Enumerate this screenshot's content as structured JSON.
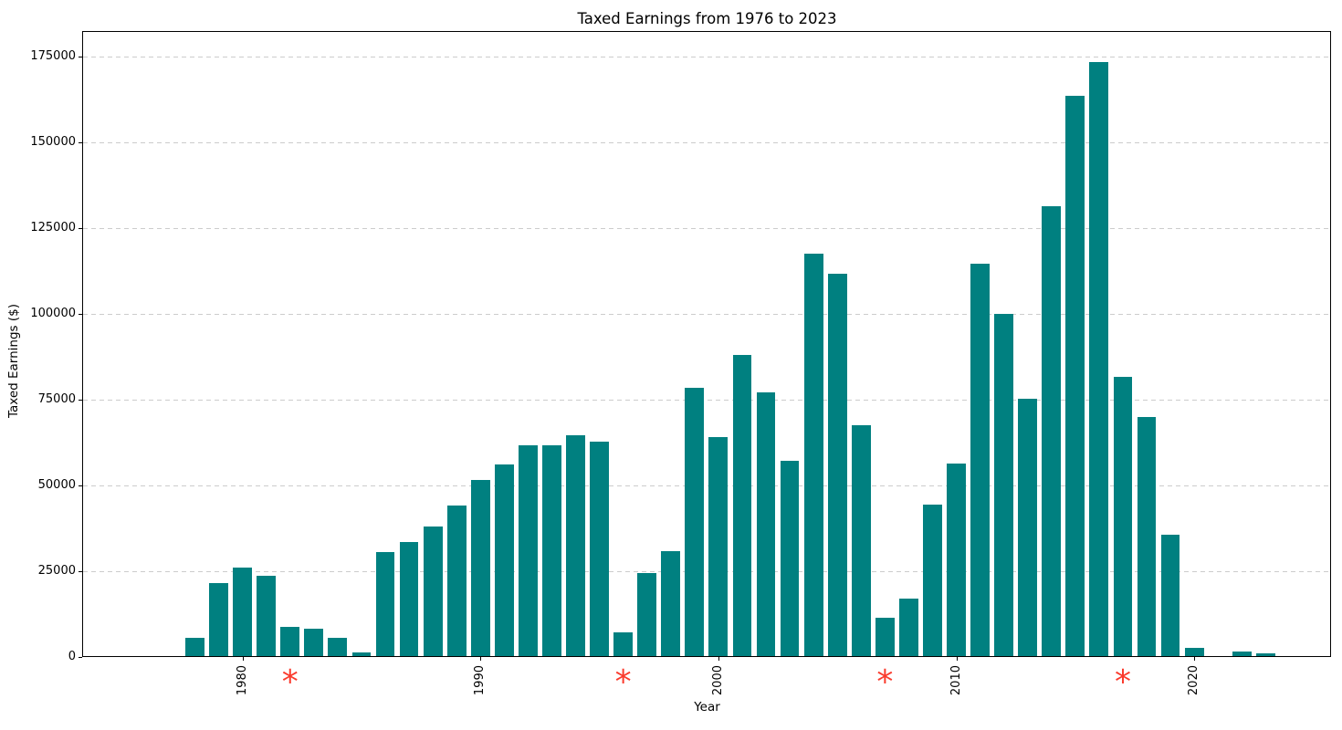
{
  "chart_data": {
    "type": "bar",
    "title": "Taxed Earnings from 1976 to 2023",
    "xlabel": "Year",
    "ylabel": "Taxed Earnings ($)",
    "categories": [
      1976,
      1977,
      1978,
      1979,
      1980,
      1981,
      1982,
      1983,
      1984,
      1985,
      1986,
      1987,
      1988,
      1989,
      1990,
      1991,
      1992,
      1993,
      1994,
      1995,
      1996,
      1997,
      1998,
      1999,
      2000,
      2001,
      2002,
      2003,
      2004,
      2005,
      2006,
      2007,
      2008,
      2009,
      2010,
      2011,
      2012,
      2013,
      2014,
      2015,
      2016,
      2017,
      2018,
      2019,
      2020,
      2021,
      2022,
      2023
    ],
    "values": [
      0,
      0,
      5400,
      21400,
      25900,
      23400,
      8400,
      8100,
      5400,
      1200,
      30300,
      33400,
      37700,
      43900,
      51400,
      56000,
      61400,
      61400,
      64400,
      62600,
      7000,
      24200,
      30600,
      78200,
      64000,
      87800,
      76900,
      57000,
      117500,
      111500,
      67400,
      11200,
      16800,
      44300,
      56300,
      114400,
      99800,
      75100,
      131100,
      163400,
      173200,
      81400,
      69800,
      35400,
      2400,
      0,
      1400,
      900
    ],
    "flagged_years": [
      1982,
      1996,
      2007,
      2017
    ],
    "flag_marker": "*",
    "yticks": [
      0,
      25000,
      50000,
      75000,
      100000,
      125000,
      150000,
      175000
    ],
    "xticks": [
      1980,
      1990,
      2000,
      2010,
      2020
    ],
    "ylim": [
      0,
      182200
    ],
    "xlim": [
      1973.3,
      2025.75
    ],
    "bar_width": 0.8,
    "grid": "horizontal-dashed",
    "legend": null,
    "colors": {
      "bar": "#008080",
      "flag": "#fa3b2d",
      "grid": "#cccccc",
      "axis": "#000000"
    }
  }
}
